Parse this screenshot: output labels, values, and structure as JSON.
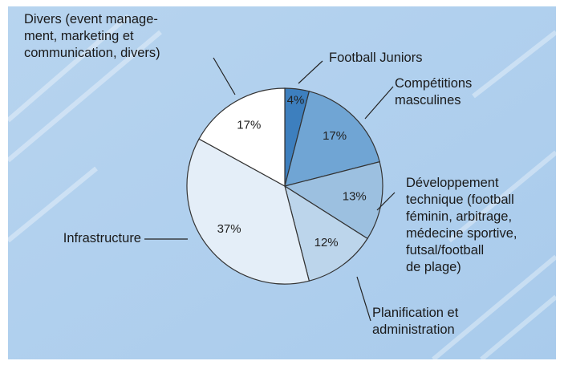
{
  "chart_data": {
    "type": "pie",
    "categories": [
      "Football Juniors",
      "Compétitions\nmasculines",
      "Développement\ntechnique (football\nféminin, arbitrage,\nmédecine sportive,\nfutsal/football\nde plage)",
      "Planification et\nadministration",
      "Infrastructure",
      "Divers (event manage-\nment, marketing et\ncommunication, divers)"
    ],
    "values": [
      4,
      17,
      13,
      12,
      37,
      17
    ],
    "value_labels": [
      "4%",
      "17%",
      "13%",
      "12%",
      "37%",
      "17%"
    ],
    "colors": [
      "#3d7fbe",
      "#70a5d4",
      "#9cc0e0",
      "#bcd5eb",
      "#e4eef8",
      "#ffffff"
    ]
  }
}
